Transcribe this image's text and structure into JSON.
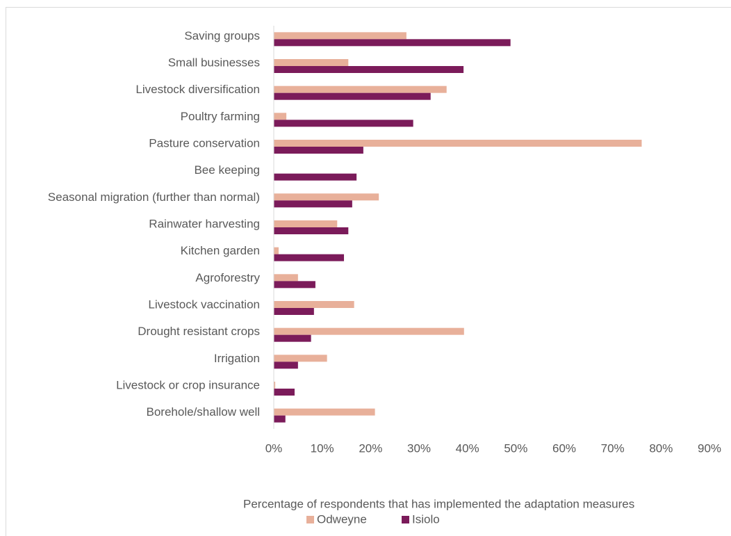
{
  "chart_data": {
    "type": "bar",
    "orientation": "horizontal",
    "x_label": "Percentage of respondents that has implemented the adaptation measures",
    "categories": [
      "Saving groups",
      "Small businesses",
      "Livestock diversification",
      "Poultry farming",
      "Pasture conservation",
      "Bee keeping",
      "Seasonal migration (further than normal)",
      "Rainwater harvesting",
      "Kitchen garden",
      "Agroforestry",
      "Livestock vaccination",
      "Drought resistant crops",
      "Irrigation",
      "Livestock or crop insurance",
      "Borehole/shallow well"
    ],
    "series": [
      {
        "name": "Odweyne",
        "color": "#e8b09a",
        "values": [
          27.4,
          15.4,
          35.7,
          2.6,
          76.0,
          0,
          21.7,
          13.1,
          1.0,
          5.0,
          16.6,
          39.3,
          11.0,
          0.3,
          20.9
        ]
      },
      {
        "name": "Isiolo",
        "color": "#7b1b5a",
        "values": [
          48.9,
          39.2,
          32.4,
          28.8,
          18.5,
          17.1,
          16.2,
          15.4,
          14.5,
          8.6,
          8.3,
          7.7,
          5.0,
          4.3,
          2.4
        ]
      }
    ],
    "xlim": [
      0,
      90
    ],
    "xticks": [
      {
        "value": 0,
        "label": "0%"
      },
      {
        "value": 10,
        "label": "10%"
      },
      {
        "value": 20,
        "label": "20%"
      },
      {
        "value": 30,
        "label": "30%"
      },
      {
        "value": 40,
        "label": "40%"
      },
      {
        "value": 50,
        "label": "50%"
      },
      {
        "value": 60,
        "label": "60%"
      },
      {
        "value": 70,
        "label": "70%"
      },
      {
        "value": 80,
        "label": "80%"
      },
      {
        "value": 90,
        "label": "90%"
      }
    ],
    "grid": false,
    "legend": "bottom"
  }
}
